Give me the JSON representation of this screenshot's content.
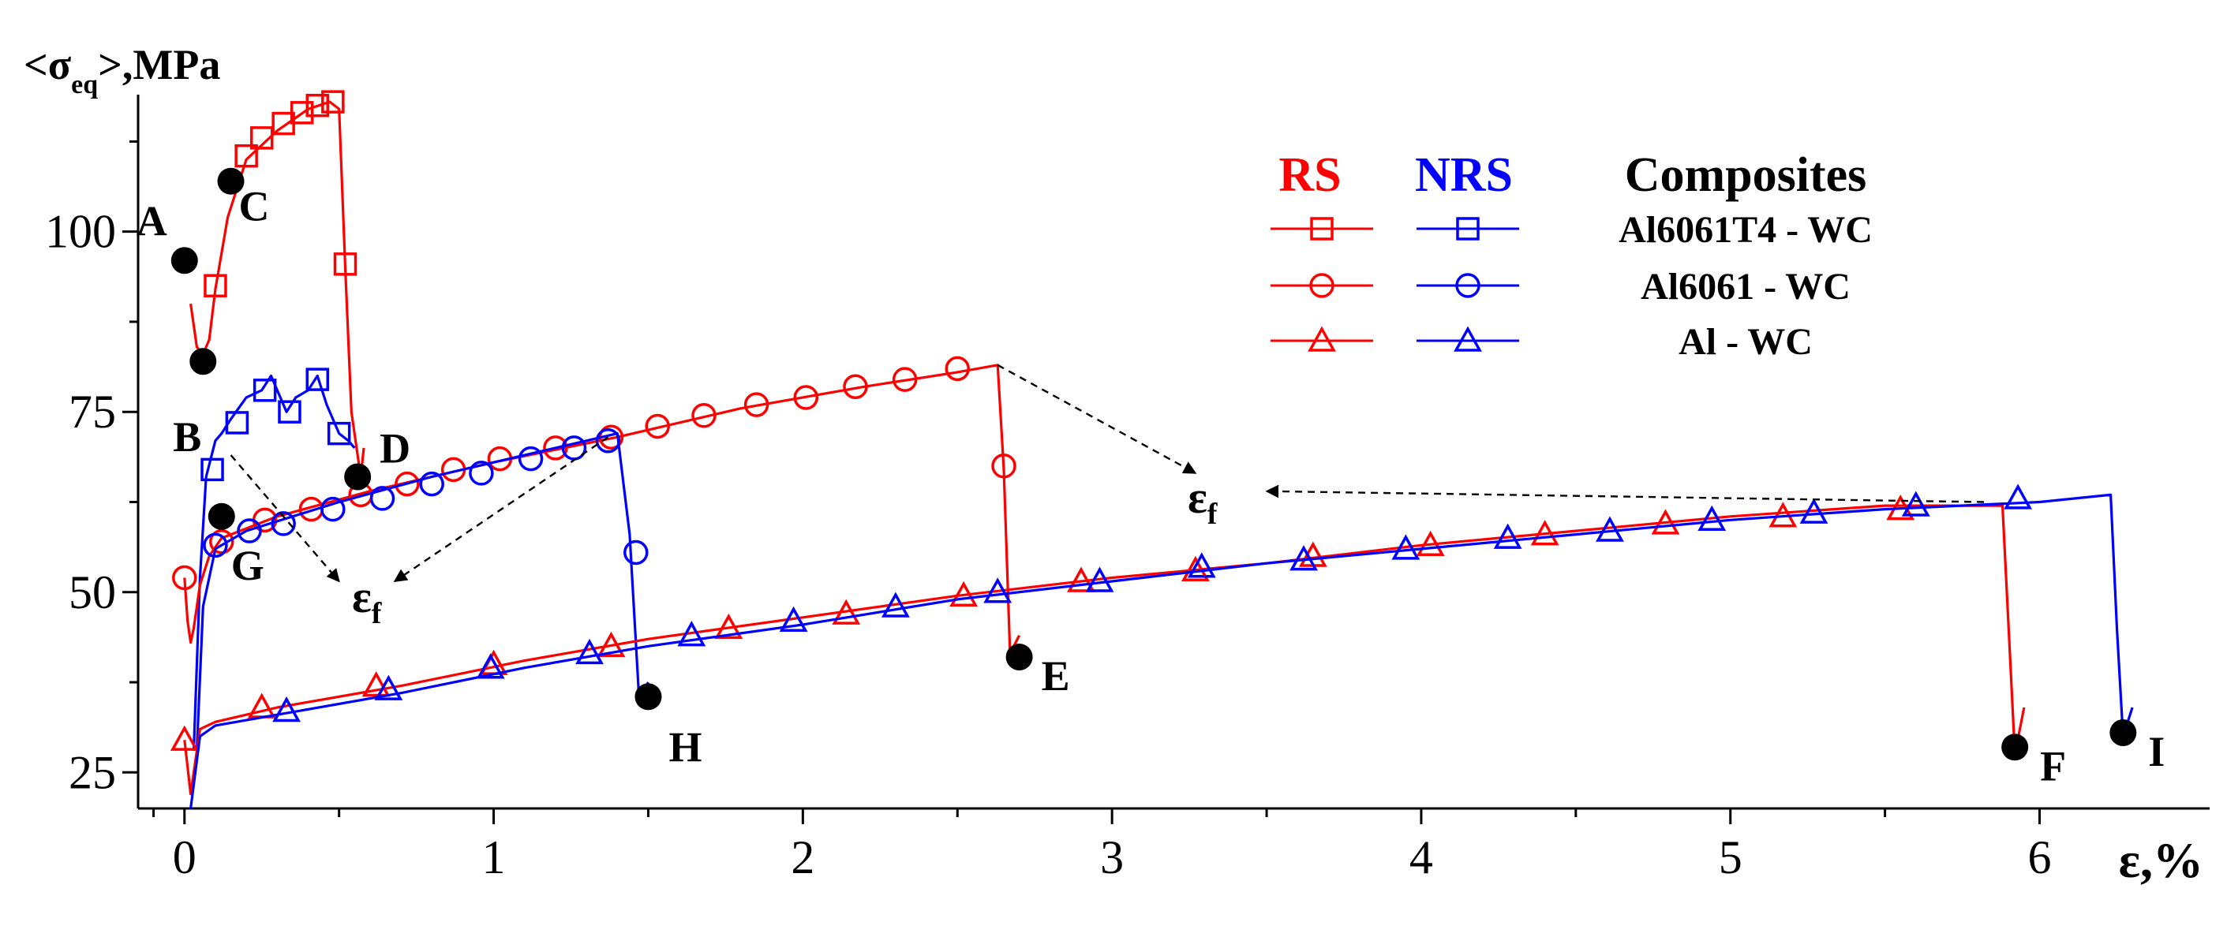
{
  "chart_data": {
    "type": "line",
    "title": "",
    "xlabel": "ε,%",
    "ylabel_prefix": "<σ",
    "ylabel_sub": "eq",
    "ylabel_suffix": ">,MPa",
    "xlim": [
      -0.15,
      6.55
    ],
    "ylim": [
      20,
      119
    ],
    "x_ticks": [
      0,
      1,
      2,
      3,
      4,
      5,
      6
    ],
    "x_tick_labels": [
      "0",
      "1",
      "2",
      "3",
      "4",
      "5",
      "6"
    ],
    "y_ticks": [
      25,
      50,
      75,
      100
    ],
    "y_tick_labels": [
      "25",
      "50",
      "75",
      "100"
    ],
    "colors": {
      "RS": "#ff0000",
      "NRS": "#0000ff",
      "text": "#000000"
    },
    "legend": {
      "position": "top-right",
      "rs_header": "RS",
      "nrs_header": "NRS",
      "composites_header": "Composites",
      "rows": [
        {
          "marker": "square",
          "label": "Al6061T4 - WC"
        },
        {
          "marker": "circle",
          "label": "Al6061 - WC"
        },
        {
          "marker": "triangle",
          "label": "Al - WC"
        }
      ]
    },
    "series": [
      {
        "name": "Al6061T4 - WC RS",
        "group": "RS",
        "marker": "square",
        "x": [
          0.02,
          0.04,
          0.06,
          0.08,
          0.1,
          0.14,
          0.2,
          0.3,
          0.4,
          0.47,
          0.5,
          0.52,
          0.54,
          0.57,
          0.58
        ],
        "y": [
          90,
          84,
          83,
          85,
          92,
          102,
          110,
          114,
          117,
          118,
          117,
          95,
          75,
          66,
          70
        ],
        "marker_x": [
          0.1,
          0.2,
          0.25,
          0.32,
          0.38,
          0.43,
          0.48,
          0.52
        ],
        "marker_y": [
          92.5,
          110.5,
          113,
          115,
          116.5,
          117.5,
          118,
          95.5
        ]
      },
      {
        "name": "Al6061T4 - WC NRS",
        "group": "NRS",
        "marker": "square",
        "x": [
          0.03,
          0.05,
          0.07,
          0.1,
          0.12,
          0.15,
          0.2,
          0.25,
          0.28,
          0.3,
          0.33,
          0.36,
          0.4,
          0.43,
          0.46,
          0.5,
          0.53,
          0.55
        ],
        "y": [
          28,
          52,
          66,
          71,
          72,
          74,
          77,
          78,
          80,
          78,
          75,
          77,
          78,
          80,
          76,
          72,
          71,
          70
        ],
        "marker_x": [
          0.09,
          0.17,
          0.26,
          0.34,
          0.43,
          0.5
        ],
        "marker_y": [
          67,
          73.5,
          78,
          75,
          79.5,
          72
        ]
      },
      {
        "name": "Al6061 - WC RS",
        "group": "RS",
        "marker": "circle",
        "x": [
          0.0,
          0.01,
          0.02,
          0.03,
          0.05,
          0.08,
          0.12,
          0.3,
          0.6,
          1.0,
          1.4,
          1.8,
          2.2,
          2.5,
          2.63,
          2.65,
          2.67,
          2.7
        ],
        "y": [
          52,
          46,
          43,
          45,
          51,
          55,
          57.5,
          60.5,
          64,
          68,
          71.5,
          75.5,
          78.5,
          80.5,
          81.5,
          67,
          41.5,
          44
        ],
        "marker_x": [
          0.0,
          0.12,
          0.26,
          0.41,
          0.57,
          0.72,
          0.87,
          1.02,
          1.2,
          1.38,
          1.53,
          1.68,
          1.85,
          2.01,
          2.17,
          2.33,
          2.5,
          2.65
        ],
        "marker_y": [
          52,
          57,
          60,
          61.5,
          63.5,
          65,
          67,
          68.5,
          70,
          71.5,
          73,
          74.5,
          76,
          77,
          78.5,
          79.5,
          81,
          67.5
        ]
      },
      {
        "name": "Al6061 - WC NRS",
        "group": "NRS",
        "marker": "circle",
        "x": [
          0.04,
          0.06,
          0.1,
          0.2,
          0.5,
          0.8,
          1.1,
          1.3,
          1.4,
          1.44,
          1.47,
          1.5
        ],
        "y": [
          28,
          48,
          56,
          58.5,
          62.5,
          66,
          69,
          71,
          72,
          58,
          35.5,
          37.5
        ],
        "marker_x": [
          0.1,
          0.21,
          0.32,
          0.48,
          0.64,
          0.8,
          0.96,
          1.12,
          1.26,
          1.37,
          1.46
        ],
        "marker_y": [
          56.5,
          58.5,
          59.5,
          61.5,
          63,
          65,
          66.5,
          68.5,
          70,
          71,
          55.5
        ]
      },
      {
        "name": "Al - WC RS",
        "group": "RS",
        "marker": "triangle",
        "x": [
          0.0,
          0.02,
          0.05,
          0.1,
          0.3,
          0.7,
          1.1,
          1.5,
          2.0,
          2.5,
          3.0,
          3.5,
          4.0,
          4.5,
          5.0,
          5.5,
          5.88,
          5.9,
          5.92,
          5.95
        ],
        "y": [
          29.5,
          22,
          31,
          32,
          34,
          37,
          40.5,
          43.5,
          46.5,
          49.5,
          52,
          54,
          56.5,
          58.5,
          60.5,
          62,
          62,
          45,
          27.5,
          34
        ],
        "marker_x": [
          0.0,
          0.25,
          0.62,
          1.0,
          1.38,
          1.76,
          2.14,
          2.52,
          2.9,
          3.27,
          3.65,
          4.03,
          4.4,
          4.79,
          5.17,
          5.55
        ],
        "marker_y": [
          29.5,
          34,
          37,
          40,
          42.5,
          45,
          47,
          49.5,
          51.5,
          53,
          55,
          56.5,
          58,
          59.5,
          60.5,
          61.5
        ]
      },
      {
        "name": "Al - WC NRS",
        "group": "NRS",
        "marker": "triangle",
        "x": [
          0.02,
          0.05,
          0.1,
          0.3,
          0.7,
          1.1,
          1.5,
          2.0,
          2.5,
          3.0,
          3.5,
          4.0,
          4.5,
          5.0,
          5.5,
          6.0,
          6.23,
          6.25,
          6.27,
          6.3
        ],
        "y": [
          20,
          30,
          31.5,
          33,
          36,
          39.5,
          42.5,
          45.5,
          49,
          51.5,
          54,
          56,
          58,
          60,
          61.5,
          62.5,
          63.5,
          45,
          30,
          34
        ],
        "marker_x": [
          0.33,
          0.66,
          0.99,
          1.31,
          1.64,
          1.97,
          2.3,
          2.63,
          2.96,
          3.29,
          3.62,
          3.95,
          4.28,
          4.61,
          4.94,
          5.27,
          5.6,
          5.93
        ],
        "marker_y": [
          33.5,
          36.5,
          39.5,
          41.5,
          44,
          46,
          48,
          50,
          51.5,
          53.5,
          54.5,
          56,
          57.5,
          58.5,
          60,
          61,
          62,
          63
        ]
      }
    ],
    "points": [
      {
        "label": "A",
        "x": 0.0,
        "y": 96
      },
      {
        "label": "B",
        "x": 0.06,
        "y": 82
      },
      {
        "label": "C",
        "x": 0.15,
        "y": 107
      },
      {
        "label": "D",
        "x": 0.56,
        "y": 66
      },
      {
        "label": "G",
        "x": 0.12,
        "y": 60.5
      },
      {
        "label": "H",
        "x": 1.5,
        "y": 35.5
      },
      {
        "label": "E",
        "x": 2.7,
        "y": 41
      },
      {
        "label": "F",
        "x": 5.92,
        "y": 28.5
      },
      {
        "label": "I",
        "x": 6.27,
        "y": 30.5
      }
    ],
    "annotations": {
      "epsilon_text": "ε",
      "epsilon_sub": "f",
      "arrows": [
        {
          "from": [
            0.15,
            69
          ],
          "to": [
            0.5,
            51.5
          ]
        },
        {
          "from": [
            1.37,
            71.5
          ],
          "to": [
            0.68,
            51.5
          ]
        },
        {
          "from": [
            2.63,
            81.5
          ],
          "to": [
            3.27,
            66.5
          ]
        },
        {
          "from": [
            5.82,
            62.5
          ],
          "to": [
            3.5,
            64
          ]
        }
      ]
    }
  }
}
